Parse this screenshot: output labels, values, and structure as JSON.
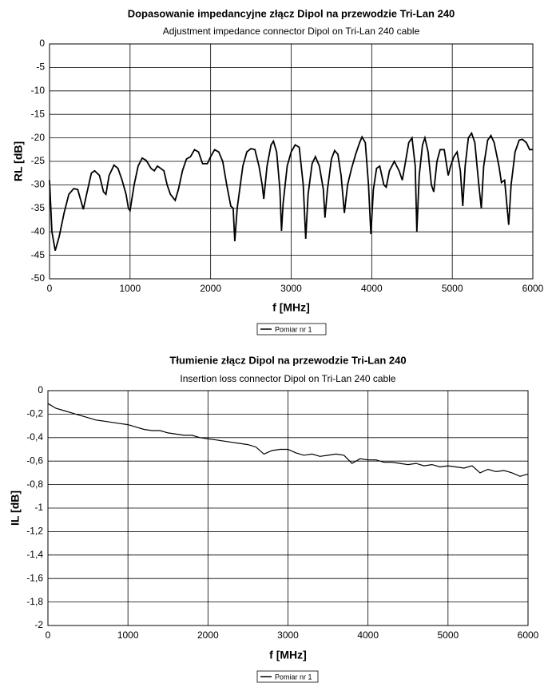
{
  "chart_data": [
    {
      "type": "line",
      "title": "Dopasowanie impedancyjne złącz Dipol na przewodzie Tri-Lan 240",
      "subtitle": "Adjustment impedance connector Dipol on Tri-Lan 240 cable",
      "xlabel": "f [MHz]",
      "ylabel": "RL [dB]",
      "x": [
        0,
        30,
        70,
        120,
        180,
        240,
        300,
        350,
        400,
        420,
        460,
        520,
        560,
        620,
        670,
        700,
        740,
        800,
        850,
        900,
        950,
        980,
        1000,
        1050,
        1100,
        1150,
        1200,
        1260,
        1300,
        1340,
        1380,
        1420,
        1460,
        1500,
        1560,
        1600,
        1650,
        1700,
        1750,
        1800,
        1850,
        1900,
        1960,
        2000,
        2050,
        2100,
        2150,
        2200,
        2250,
        2280,
        2300,
        2330,
        2400,
        2450,
        2500,
        2550,
        2600,
        2640,
        2660,
        2700,
        2750,
        2780,
        2820,
        2860,
        2880,
        2900,
        2950,
        3000,
        3050,
        3100,
        3150,
        3180,
        3210,
        3260,
        3300,
        3350,
        3400,
        3420,
        3450,
        3500,
        3540,
        3580,
        3620,
        3660,
        3700,
        3750,
        3800,
        3850,
        3880,
        3920,
        3960,
        3990,
        4020,
        4060,
        4100,
        4150,
        4180,
        4220,
        4280,
        4340,
        4380,
        4420,
        4460,
        4500,
        4540,
        4560,
        4590,
        4630,
        4660,
        4700,
        4740,
        4770,
        4810,
        4850,
        4900,
        4950,
        4980,
        5020,
        5060,
        5100,
        5130,
        5160,
        5200,
        5240,
        5280,
        5330,
        5360,
        5390,
        5440,
        5480,
        5520,
        5580,
        5610,
        5650,
        5700,
        5730,
        5780,
        5830,
        5870,
        5920,
        5960,
        6000
      ],
      "series": [
        {
          "name": "Pomiar nr 1",
          "color": "#000000",
          "values": [
            -29,
            -40,
            -44,
            -41,
            -36,
            -32,
            -30.8,
            -31,
            -34,
            -35.2,
            -32,
            -27.5,
            -27,
            -28,
            -31.5,
            -32,
            -28,
            -25.8,
            -26.5,
            -29,
            -32,
            -35,
            -35.5,
            -30,
            -26,
            -24.3,
            -24.8,
            -26.5,
            -27,
            -26,
            -26.5,
            -27,
            -30,
            -32,
            -33.3,
            -31,
            -27,
            -24.5,
            -24,
            -22.5,
            -23,
            -25.5,
            -25.5,
            -24,
            -22.5,
            -23,
            -25,
            -30,
            -34.5,
            -35,
            -42,
            -35,
            -26,
            -23,
            -22.3,
            -22.5,
            -26,
            -30,
            -33,
            -26,
            -21.5,
            -20.7,
            -23,
            -31,
            -39.8,
            -34,
            -26,
            -23,
            -21.5,
            -22,
            -30,
            -41.5,
            -32,
            -25.5,
            -24,
            -26,
            -31,
            -37,
            -31,
            -24.5,
            -22.7,
            -23.5,
            -28,
            -36,
            -30,
            -26.5,
            -23.5,
            -21,
            -19.8,
            -21,
            -30,
            -40.5,
            -31,
            -26.5,
            -26,
            -30,
            -30.5,
            -27,
            -25,
            -27,
            -29,
            -25,
            -21,
            -20,
            -26,
            -40,
            -28,
            -21.5,
            -20,
            -23,
            -30,
            -31.5,
            -25,
            -22.5,
            -22.5,
            -28,
            -26,
            -24,
            -23,
            -27,
            -34.5,
            -26,
            -20,
            -19,
            -21,
            -30,
            -35,
            -26,
            -20.5,
            -19.5,
            -21,
            -26,
            -29.5,
            -29,
            -38.5,
            -30,
            -23,
            -20.5,
            -20.3,
            -21,
            -22.5,
            -22.5
          ]
        }
      ],
      "xlim": [
        0,
        6000
      ],
      "ylim": [
        -50,
        0
      ],
      "xticks": [
        0,
        1000,
        2000,
        3000,
        4000,
        5000,
        6000
      ],
      "yticks": [
        0,
        -5,
        -10,
        -15,
        -20,
        -25,
        -30,
        -35,
        -40,
        -45,
        -50
      ],
      "grid": true,
      "legend": "bottom"
    },
    {
      "type": "line",
      "title": "Tłumienie złącz Dipol na przewodzie Tri-Lan 240",
      "subtitle": "Insertion loss connector Dipol on Tri-Lan 240 cable",
      "xlabel": "f [MHz]",
      "ylabel": "IL [dB]",
      "x": [
        0,
        100,
        200,
        300,
        400,
        500,
        600,
        700,
        800,
        900,
        1000,
        1100,
        1200,
        1300,
        1400,
        1500,
        1600,
        1700,
        1800,
        1900,
        2000,
        2100,
        2200,
        2300,
        2400,
        2500,
        2600,
        2700,
        2800,
        2900,
        3000,
        3100,
        3200,
        3300,
        3400,
        3500,
        3600,
        3700,
        3800,
        3900,
        4000,
        4100,
        4200,
        4300,
        4400,
        4500,
        4600,
        4700,
        4800,
        4900,
        5000,
        5100,
        5200,
        5300,
        5400,
        5500,
        5600,
        5700,
        5800,
        5900,
        6000
      ],
      "series": [
        {
          "name": "Pomiar nr 1",
          "color": "#000000",
          "values": [
            -0.11,
            -0.15,
            -0.17,
            -0.19,
            -0.21,
            -0.23,
            -0.25,
            -0.26,
            -0.27,
            -0.28,
            -0.29,
            -0.31,
            -0.33,
            -0.34,
            -0.34,
            -0.36,
            -0.37,
            -0.38,
            -0.38,
            -0.4,
            -0.41,
            -0.42,
            -0.43,
            -0.44,
            -0.45,
            -0.46,
            -0.48,
            -0.54,
            -0.51,
            -0.5,
            -0.5,
            -0.53,
            -0.55,
            -0.54,
            -0.56,
            -0.55,
            -0.54,
            -0.55,
            -0.62,
            -0.58,
            -0.59,
            -0.59,
            -0.61,
            -0.61,
            -0.62,
            -0.63,
            -0.62,
            -0.64,
            -0.63,
            -0.65,
            -0.64,
            -0.65,
            -0.66,
            -0.64,
            -0.7,
            -0.67,
            -0.69,
            -0.68,
            -0.7,
            -0.73,
            -0.71
          ]
        }
      ],
      "xlim": [
        0,
        6000
      ],
      "ylim": [
        -2,
        0
      ],
      "xticks": [
        0,
        1000,
        2000,
        3000,
        4000,
        5000,
        6000
      ],
      "yticks": [
        0,
        {
          "value": -0.2,
          "label": "-0,2"
        },
        {
          "value": -0.4,
          "label": "-0,4"
        },
        {
          "value": -0.6,
          "label": "-0,6"
        },
        {
          "value": -0.8,
          "label": "-0,8"
        },
        -1,
        {
          "value": -1.2,
          "label": "-1,2"
        },
        {
          "value": -1.4,
          "label": "-1,4"
        },
        {
          "value": -1.6,
          "label": "-1,6"
        },
        {
          "value": -1.8,
          "label": "-1,8"
        },
        -2
      ],
      "grid": true,
      "legend": "bottom"
    }
  ]
}
